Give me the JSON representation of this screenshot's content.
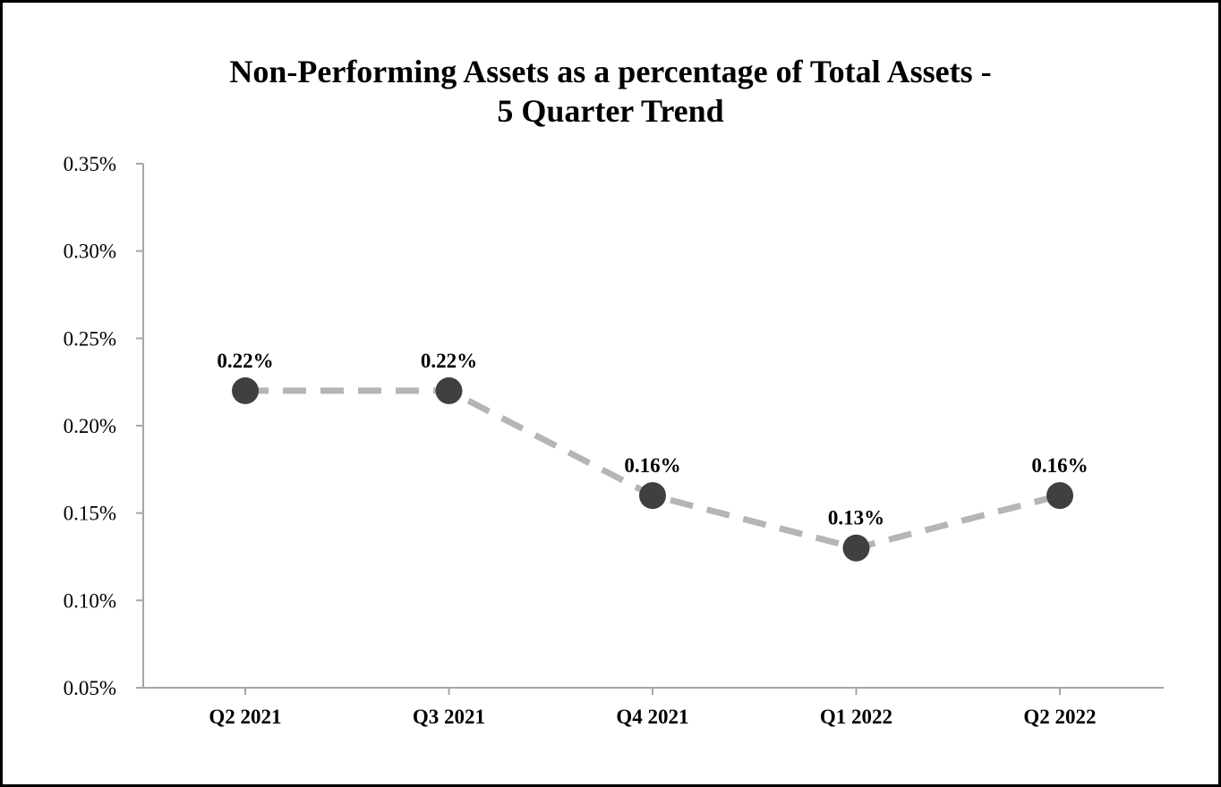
{
  "chart_data": {
    "type": "line",
    "title_lines": [
      "Non-Performing Assets as a percentage of Total Assets -",
      "5 Quarter Trend"
    ],
    "categories": [
      "Q2 2021",
      "Q3 2021",
      "Q4 2021",
      "Q1 2022",
      "Q2 2022"
    ],
    "series": [
      {
        "values": [
          0.22,
          0.22,
          0.16,
          0.13,
          0.16
        ],
        "data_labels": [
          "0.22%",
          "0.22%",
          "0.16%",
          "0.13%",
          "0.16%"
        ],
        "line_color": "#b5b5b5",
        "line_style": "dashed",
        "marker_color": "#404040"
      }
    ],
    "ylim": [
      0.05,
      0.35
    ],
    "y_ticks": [
      0.05,
      0.1,
      0.15,
      0.2,
      0.25,
      0.3,
      0.35
    ],
    "y_tick_labels": [
      "0.05%",
      "0.10%",
      "0.15%",
      "0.20%",
      "0.25%",
      "0.30%",
      "0.35%"
    ],
    "xlabel": "",
    "ylabel": "",
    "grid": false,
    "legend": "none",
    "axis_color": "#a6a6a6"
  }
}
